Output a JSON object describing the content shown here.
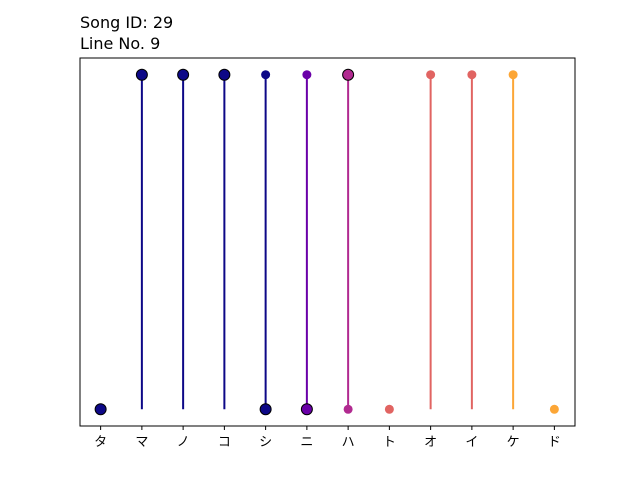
{
  "chart_data": {
    "type": "lollipop",
    "title_lines": [
      "Song ID: 29",
      "Line No. 9"
    ],
    "categories": [
      "タ",
      "マ",
      "ノ",
      "コ",
      "シ",
      "ニ",
      "ハ",
      "ト",
      "オ",
      "イ",
      "ケ",
      "ド"
    ],
    "stems": [
      {
        "value": 0,
        "color": "#0d0887",
        "top_marker": "none",
        "bottom_marker": "large"
      },
      {
        "value": 1,
        "color": "#0d0887",
        "top_marker": "large",
        "bottom_marker": "none"
      },
      {
        "value": 1,
        "color": "#0d0887",
        "top_marker": "large",
        "bottom_marker": "none"
      },
      {
        "value": 1,
        "color": "#0d0887",
        "top_marker": "large",
        "bottom_marker": "none"
      },
      {
        "value": 1,
        "color": "#0d0887",
        "top_marker": "small",
        "bottom_marker": "large"
      },
      {
        "value": 1,
        "color": "#6a00a8",
        "top_marker": "small",
        "bottom_marker": "large"
      },
      {
        "value": 1,
        "color": "#b12a90",
        "top_marker": "large",
        "bottom_marker": "small"
      },
      {
        "value": 0,
        "color": "#e16462",
        "top_marker": "none",
        "bottom_marker": "small"
      },
      {
        "value": 1,
        "color": "#e16462",
        "top_marker": "small",
        "bottom_marker": "none"
      },
      {
        "value": 1,
        "color": "#e16462",
        "top_marker": "small",
        "bottom_marker": "none"
      },
      {
        "value": 1,
        "color": "#fca636",
        "top_marker": "small",
        "bottom_marker": "none"
      },
      {
        "value": 0,
        "color": "#fca636",
        "top_marker": "none",
        "bottom_marker": "small"
      }
    ],
    "ylim": [
      -0.05,
      1.05
    ],
    "y_ticks_visible": false,
    "grid": false,
    "legend": "none"
  }
}
